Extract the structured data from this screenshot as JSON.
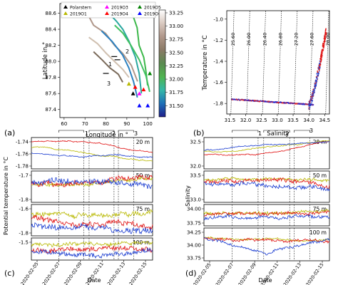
{
  "panels": {
    "a": {
      "letter": "(a)",
      "xlabel": "Longitude in °",
      "ylabel": "Latitude in °",
      "xticks": [
        "60",
        "70",
        "80",
        "90",
        "100"
      ],
      "yticks": [
        "87.4",
        "87.6",
        "87.8",
        "88.0",
        "88.2",
        "88.4",
        "88.6"
      ],
      "legend": [
        {
          "label": "Polarstern",
          "color": "#000000"
        },
        {
          "label": "2019O1",
          "color": "#b8b800"
        },
        {
          "label": "2019O3",
          "color": "#ff00ff"
        },
        {
          "label": "2019O4",
          "color": "#ff0000"
        },
        {
          "label": "2019O5",
          "color": "#008000"
        },
        {
          "label": "2019O6",
          "color": "#0000ff"
        }
      ],
      "colorbar": {
        "ticks": [
          "33.25",
          "33.00",
          "32.75",
          "32.50",
          "32.25",
          "32.00",
          "31.75",
          "31.50"
        ],
        "stops": [
          "#ffffff",
          "#d9c9c0",
          "#b0978a",
          "#8a7a66",
          "#5a8a50",
          "#4fb44f",
          "#34b8a8",
          "#1e70b8",
          "#1f1f8a"
        ]
      },
      "labels_on_map": [
        "1",
        "2",
        "3"
      ]
    },
    "b": {
      "letter": "(b)",
      "xlabel": "Salinity",
      "ylabel": "Temperature in °C",
      "xticks": [
        "31.5",
        "32.0",
        "32.5",
        "33.0",
        "33.5",
        "34.0",
        "34.5"
      ],
      "yticks": [
        "-1.0",
        "-1.2",
        "-1.4",
        "-1.6",
        "-1.8"
      ],
      "isopycnals": [
        "25.60",
        "26.00",
        "26.40",
        "26.80",
        "27.20",
        "27.60",
        "28.00"
      ]
    },
    "c": {
      "letter": "(c)",
      "xlabel": "Date",
      "ylabel": "Potential temperature in °C",
      "xticks": [
        "2020-02-05",
        "2020-02-07",
        "2020-02-09",
        "2020-02-11",
        "2020-02-13",
        "2020-02-15"
      ],
      "period_labels": [
        "1",
        "2",
        "3"
      ],
      "depths": [
        {
          "depth": "20 m",
          "ticks": [
            "-1.74",
            "-1.76",
            "-1.78"
          ]
        },
        {
          "depth": "50 m",
          "ticks": [
            "-1.7",
            "-1.8"
          ]
        },
        {
          "depth": "75 m",
          "ticks": [
            "-1.6",
            "-1.8"
          ]
        },
        {
          "depth": "100 m",
          "ticks": [
            "-1.5"
          ]
        }
      ]
    },
    "d": {
      "letter": "(d)",
      "xlabel": "Date",
      "ylabel": "Salinity",
      "xticks": [
        "2020-02-05",
        "2020-02-07",
        "2020-02-09",
        "2020-02-11",
        "2020-02-13",
        "2020-02-15"
      ],
      "period_labels": [
        "1",
        "2",
        "3"
      ],
      "depths": [
        {
          "depth": "20 m",
          "ticks": [
            "32.5",
            "32.0"
          ]
        },
        {
          "depth": "50 m",
          "ticks": [
            "33.5",
            "33.0"
          ]
        },
        {
          "depth": "75 m",
          "ticks": [
            "34.00",
            "33.75"
          ]
        },
        {
          "depth": "100 m",
          "ticks": [
            "34.25",
            "34.00",
            "33.75"
          ]
        }
      ]
    }
  }
}
